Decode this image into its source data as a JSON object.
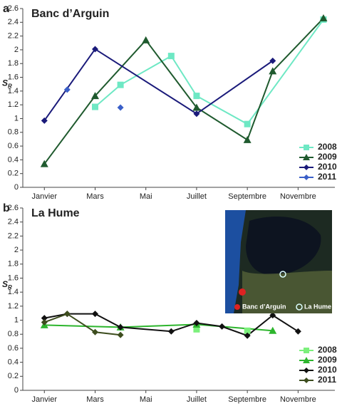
{
  "chart_data": [
    {
      "type": "line",
      "letter": "a",
      "title": "Banc d’Arguin",
      "ylabel": "S",
      "ylabel_sub": "R",
      "xlim": [
        0.15,
        12.45
      ],
      "xticks": [
        {
          "value": 1,
          "label": "Janvier"
        },
        {
          "value": 3,
          "label": "Mars"
        },
        {
          "value": 5,
          "label": "Mai"
        },
        {
          "value": 7,
          "label": "Juillet"
        },
        {
          "value": 9,
          "label": "Septembre"
        },
        {
          "value": 11,
          "label": "Novembre"
        }
      ],
      "ylim": [
        0,
        2.6
      ],
      "yticks": [
        0,
        0.2,
        0.4,
        0.6,
        0.8,
        1,
        1.2,
        1.4,
        1.6,
        1.8,
        2,
        2.2,
        2.4,
        2.6
      ],
      "legend": "bottom-right",
      "series": [
        {
          "name": "2008",
          "color": "#6ee8c4",
          "marker": "square",
          "line": true,
          "x": [
            3,
            4,
            6,
            7,
            9,
            12
          ],
          "values": [
            1.17,
            1.49,
            1.91,
            1.33,
            0.92,
            2.44
          ]
        },
        {
          "name": "2009",
          "color": "#1f5a2e",
          "marker": "triangle",
          "line": true,
          "x": [
            1,
            3,
            5,
            7,
            9,
            10,
            12
          ],
          "values": [
            0.34,
            1.33,
            2.14,
            1.16,
            0.69,
            1.69,
            2.46
          ]
        },
        {
          "name": "2010",
          "color": "#1a1a7a",
          "marker": "diamond",
          "line": true,
          "x": [
            1,
            3,
            7,
            10
          ],
          "values": [
            0.97,
            2.01,
            1.07,
            1.84
          ]
        },
        {
          "name": "2011",
          "color": "#3a5fc8",
          "marker": "diamond",
          "line": false,
          "x": [
            1.9,
            4
          ],
          "values": [
            1.42,
            1.16
          ]
        }
      ]
    },
    {
      "type": "line",
      "letter": "b",
      "title": "La Hume",
      "ylabel": "S",
      "ylabel_sub": "R",
      "xlim": [
        0.15,
        12.45
      ],
      "xticks": [
        {
          "value": 1,
          "label": "Janvier"
        },
        {
          "value": 3,
          "label": "Mars"
        },
        {
          "value": 5,
          "label": "Mai"
        },
        {
          "value": 7,
          "label": "Juillet"
        },
        {
          "value": 9,
          "label": "Septembre"
        },
        {
          "value": 11,
          "label": "Novembre"
        }
      ],
      "ylim": [
        0,
        2.6
      ],
      "yticks": [
        0,
        0.2,
        0.4,
        0.6,
        0.8,
        1,
        1.2,
        1.4,
        1.6,
        1.8,
        2,
        2.2,
        2.4,
        2.6
      ],
      "legend": "bottom-right",
      "annotations": [
        "Banc d’Arguin",
        "La Hume"
      ],
      "series": [
        {
          "name": "2008",
          "color": "#7cf07c",
          "marker": "square",
          "line": false,
          "x": [
            7,
            9
          ],
          "values": [
            0.87,
            0.85
          ]
        },
        {
          "name": "2009",
          "color": "#2db52d",
          "marker": "triangle",
          "line": true,
          "x": [
            1,
            4,
            7,
            10
          ],
          "values": [
            0.93,
            0.9,
            0.94,
            0.85
          ]
        },
        {
          "name": "2010",
          "color": "#111111",
          "marker": "diamond",
          "line": true,
          "x": [
            1,
            1.9,
            3,
            4,
            6,
            7,
            8,
            9,
            10,
            11
          ],
          "values": [
            1.03,
            1.09,
            1.09,
            0.9,
            0.84,
            0.96,
            0.91,
            0.78,
            1.07,
            0.84
          ]
        },
        {
          "name": "2011",
          "color": "#3d4d1e",
          "marker": "diamond",
          "line": true,
          "x": [
            1,
            1.9,
            3,
            4
          ],
          "values": [
            0.97,
            1.09,
            0.83,
            0.79
          ]
        }
      ]
    }
  ]
}
